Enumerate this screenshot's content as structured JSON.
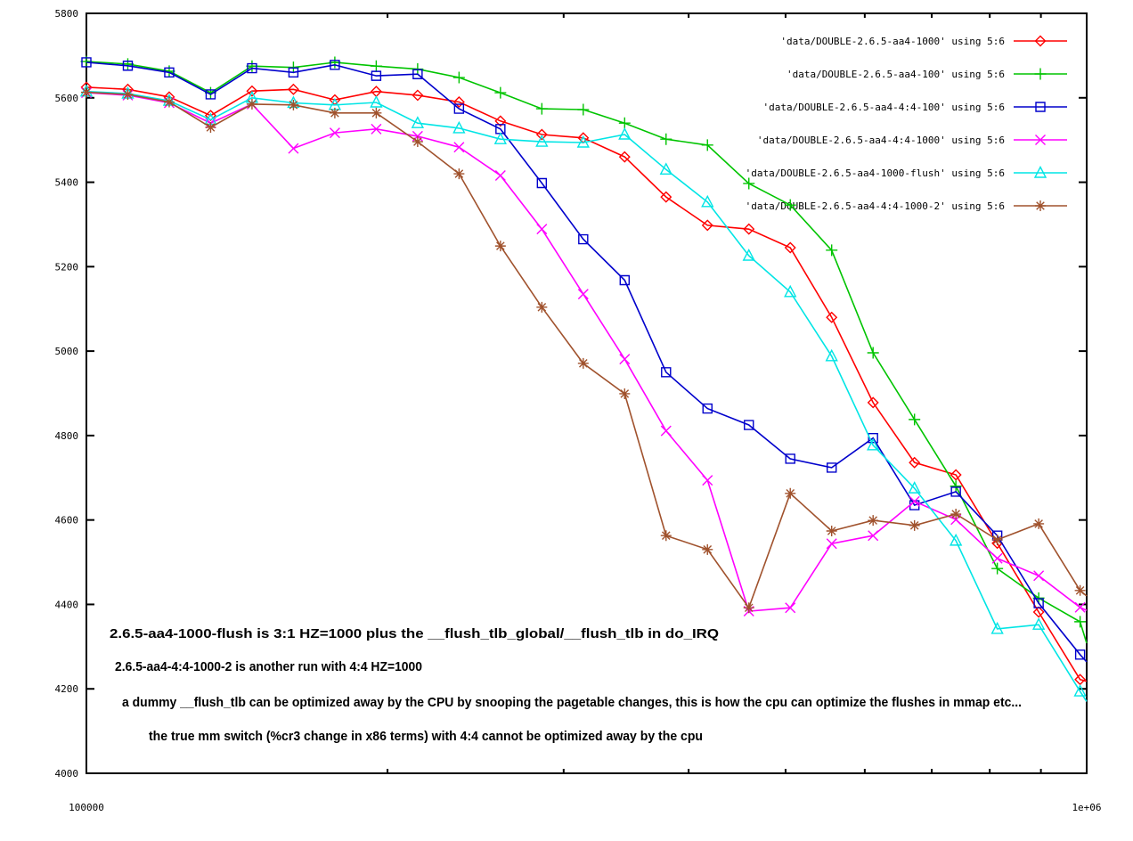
{
  "chart_data": {
    "type": "line",
    "title": "",
    "xlabel": "",
    "ylabel": "",
    "xscale": "log",
    "xlim": [
      100000,
      1000000
    ],
    "ylim": [
      4000,
      5800
    ],
    "grid": false,
    "legend_position": "top-right-inside",
    "x_tick_labels": [
      "100000",
      "1e+06"
    ],
    "x_minor_ticks": [
      200000,
      300000,
      400000,
      500000,
      600000,
      700000,
      800000,
      900000
    ],
    "y_ticks": [
      5800,
      5600,
      5400,
      5200,
      5000,
      4800,
      4600,
      4400,
      4200,
      4000
    ],
    "markers_on_last_point": false,
    "x": [
      100000,
      110000,
      121000,
      133100,
      146410,
      161051,
      177156,
      194872,
      214359,
      235795,
      259374,
      285312,
      313843,
      345227,
      379750,
      417725,
      459497,
      505447,
      555992,
      611591,
      672750,
      740025,
      814027,
      895430,
      984973,
      1000000
    ],
    "series": [
      {
        "key": "aa4-1000",
        "name": "'data/DOUBLE-2.6.5-aa4-1000' using 5:6",
        "color": "#ff0000",
        "marker": "diamond",
        "values": [
          5625,
          5620,
          5602,
          5558,
          5616,
          5620,
          5595,
          5615,
          5606,
          5590,
          5545,
          5513,
          5505,
          5460,
          5365,
          5298,
          5289,
          5245,
          5080,
          4878,
          4736,
          4707,
          4545,
          4382,
          4222,
          4218
        ]
      },
      {
        "key": "aa4-100",
        "name": "'data/DOUBLE-2.6.5-aa4-100' using 5:6",
        "color": "#00c400",
        "marker": "plus",
        "values": [
          5686,
          5680,
          5663,
          5612,
          5675,
          5672,
          5684,
          5675,
          5668,
          5648,
          5612,
          5574,
          5572,
          5540,
          5502,
          5488,
          5397,
          5346,
          5239,
          4996,
          4838,
          4680,
          4485,
          4415,
          4359,
          4308
        ]
      },
      {
        "key": "aa4-4-4-100",
        "name": "'data/DOUBLE-2.6.5-aa4-4:4-100' using 5:6",
        "color": "#0000cc",
        "marker": "square",
        "values": [
          5684,
          5676,
          5660,
          5608,
          5670,
          5660,
          5678,
          5652,
          5656,
          5574,
          5526,
          5398,
          5265,
          5168,
          4950,
          4864,
          4825,
          4745,
          4724,
          4794,
          4635,
          4667,
          4563,
          4403,
          4281,
          4264
        ]
      },
      {
        "key": "aa4-4-4-1000",
        "name": "'data/DOUBLE-2.6.5-aa4-4:4-1000' using 5:6",
        "color": "#ff00ff",
        "marker": "x",
        "values": [
          5612,
          5606,
          5588,
          5540,
          5585,
          5480,
          5517,
          5526,
          5509,
          5483,
          5416,
          5289,
          5135,
          4981,
          4811,
          4694,
          4384,
          4392,
          4544,
          4563,
          4644,
          4601,
          4509,
          4468,
          4393,
          4386
        ]
      },
      {
        "key": "aa4-1000-flush",
        "name": "'data/DOUBLE-2.6.5-aa4-1000-flush' using 5:6",
        "color": "#00e5e5",
        "marker": "triangle",
        "values": [
          5615,
          5610,
          5593,
          5548,
          5600,
          5588,
          5583,
          5589,
          5540,
          5528,
          5502,
          5496,
          5494,
          5513,
          5430,
          5353,
          5226,
          5140,
          4988,
          4777,
          4675,
          4551,
          4342,
          4352,
          4194,
          4170
        ]
      },
      {
        "key": "aa4-4-4-1000-2",
        "name": "'data/DOUBLE-2.6.5-aa4-4:4-1000-2' using 5:6",
        "color": "#a0522d",
        "marker": "asterisk",
        "values": [
          5613,
          5608,
          5590,
          5530,
          5585,
          5583,
          5564,
          5564,
          5496,
          5420,
          5249,
          5104,
          4971,
          4899,
          4563,
          4530,
          4392,
          4663,
          4574,
          4599,
          4587,
          4614,
          4553,
          4591,
          4433,
          4420
        ]
      }
    ],
    "annotations": [
      "2.6.5-aa4-1000-flush is 3:1 HZ=1000 plus the __flush_tlb_global/__flush_tlb in do_IRQ",
      "2.6.5-aa4-4:4-1000-2 is another run with 4:4 HZ=1000",
      "a dummy __flush_tlb can be optimized away by the CPU by snooping the pagetable changes, this is how the cpu can optimize the flushes in mmap etc...",
      "the true mm switch (%cr3 change in x86 terms) with 4:4 cannot be optimized away by the cpu"
    ]
  }
}
